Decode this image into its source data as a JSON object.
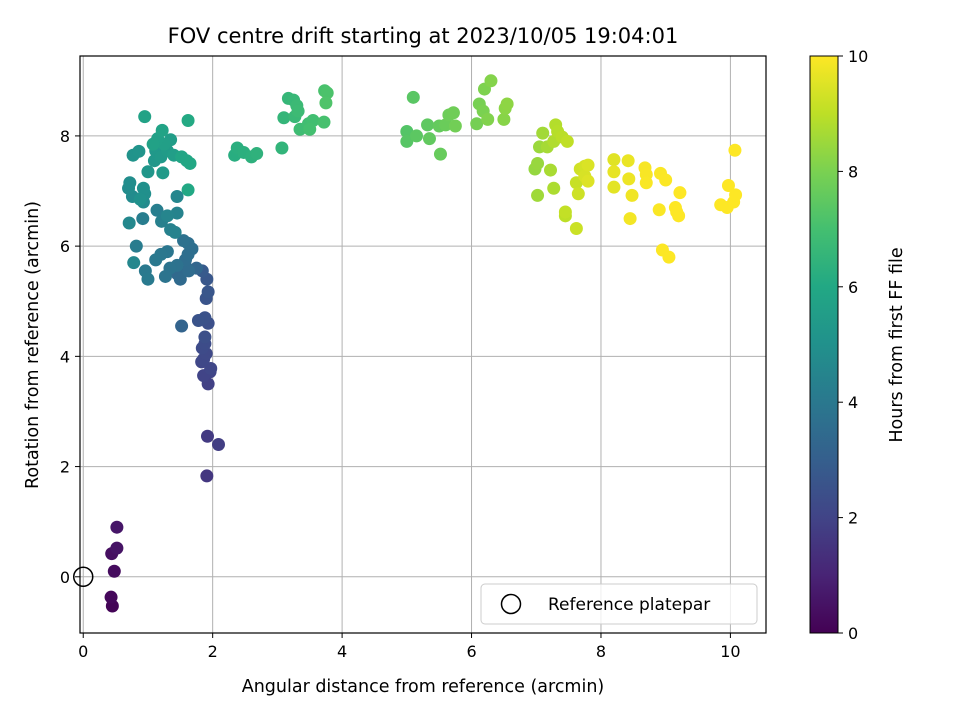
{
  "chart_data": {
    "type": "scatter",
    "title": "FOV centre drift starting at 2023/10/05 19:04:01",
    "xlabel": "Angular distance from reference (arcmin)",
    "ylabel": "Rotation from reference (arcmin)",
    "xlim": [
      -0.05,
      10.55
    ],
    "ylim": [
      -1.02,
      9.45
    ],
    "xticks": [
      "0",
      "2",
      "4",
      "6",
      "8",
      "10"
    ],
    "yticks": [
      "0",
      "2",
      "4",
      "6",
      "8"
    ],
    "grid": true,
    "legend_position": "lower-right",
    "legend": [
      "Reference platepar"
    ],
    "colorbar": {
      "label": "Hours from first FF file",
      "range": [
        0,
        10
      ],
      "ticks": [
        "0",
        "2",
        "4",
        "6",
        "8",
        "10"
      ],
      "colormap": "viridis"
    },
    "reference_point": {
      "x": 0,
      "y": 0
    },
    "points": [
      [
        0.45,
        -0.53,
        0.1
      ],
      [
        0.43,
        -0.37,
        0.2
      ],
      [
        0.48,
        0.1,
        0.3
      ],
      [
        0.44,
        0.42,
        0.4
      ],
      [
        0.52,
        0.52,
        0.5
      ],
      [
        0.52,
        0.9,
        0.6
      ],
      [
        1.91,
        1.83,
        1.6
      ],
      [
        1.92,
        2.55,
        1.7
      ],
      [
        2.09,
        2.4,
        1.8
      ],
      [
        1.93,
        3.5,
        1.9
      ],
      [
        1.96,
        3.72,
        2.0
      ],
      [
        1.86,
        3.65,
        2.0
      ],
      [
        1.97,
        3.78,
        2.1
      ],
      [
        1.83,
        3.9,
        2.1
      ],
      [
        1.86,
        3.95,
        2.15
      ],
      [
        1.9,
        4.05,
        2.2
      ],
      [
        1.84,
        4.15,
        2.25
      ],
      [
        1.88,
        4.23,
        2.3
      ],
      [
        1.88,
        4.35,
        2.4
      ],
      [
        1.93,
        4.6,
        2.45
      ],
      [
        1.88,
        4.7,
        2.5
      ],
      [
        1.78,
        4.65,
        2.55
      ],
      [
        1.9,
        5.05,
        2.6
      ],
      [
        1.93,
        5.17,
        2.65
      ],
      [
        1.91,
        5.4,
        2.7
      ],
      [
        1.84,
        5.55,
        2.8
      ],
      [
        1.52,
        4.55,
        3.2
      ],
      [
        1.75,
        5.6,
        3.3
      ],
      [
        1.58,
        5.63,
        3.35
      ],
      [
        1.45,
        5.5,
        3.4
      ],
      [
        1.5,
        5.4,
        3.45
      ],
      [
        1.63,
        5.55,
        3.5
      ],
      [
        1.58,
        5.75,
        3.55
      ],
      [
        1.62,
        5.85,
        3.6
      ],
      [
        1.68,
        5.95,
        3.6
      ],
      [
        1.62,
        6.05,
        3.65
      ],
      [
        1.55,
        6.1,
        3.7
      ],
      [
        1.45,
        5.65,
        3.75
      ],
      [
        1.34,
        5.6,
        3.8
      ],
      [
        1.27,
        5.45,
        3.85
      ],
      [
        1.3,
        5.9,
        3.9
      ],
      [
        1.2,
        5.85,
        3.95
      ],
      [
        1.12,
        5.75,
        4.0
      ],
      [
        0.96,
        5.55,
        4.05
      ],
      [
        1.0,
        5.4,
        4.1
      ],
      [
        0.82,
        6.0,
        4.15
      ],
      [
        0.92,
        6.5,
        4.2
      ],
      [
        1.14,
        6.65,
        4.25
      ],
      [
        1.21,
        6.45,
        4.3
      ],
      [
        1.35,
        6.3,
        4.35
      ],
      [
        1.42,
        6.25,
        4.4
      ],
      [
        1.45,
        6.6,
        4.45
      ],
      [
        1.3,
        6.55,
        4.5
      ],
      [
        1.45,
        6.9,
        4.55
      ],
      [
        0.78,
        5.7,
        4.6
      ],
      [
        0.71,
        6.42,
        4.65
      ],
      [
        0.93,
        6.8,
        4.7
      ],
      [
        0.76,
        6.9,
        4.75
      ],
      [
        0.7,
        7.05,
        4.8
      ],
      [
        0.72,
        7.15,
        4.85
      ],
      [
        0.95,
        6.95,
        4.9
      ],
      [
        0.93,
        7.05,
        4.95
      ],
      [
        0.88,
        6.85,
        5.0
      ],
      [
        0.77,
        7.65,
        5.1
      ],
      [
        0.86,
        7.72,
        5.15
      ],
      [
        1.0,
        7.35,
        5.2
      ],
      [
        1.1,
        7.55,
        5.25
      ],
      [
        1.12,
        7.73,
        5.3
      ],
      [
        1.2,
        7.62,
        5.35
      ],
      [
        1.23,
        7.33,
        5.4
      ],
      [
        1.3,
        7.73,
        5.45
      ],
      [
        1.35,
        7.93,
        5.5
      ],
      [
        1.4,
        7.65,
        5.55
      ],
      [
        1.25,
        7.85,
        5.6
      ],
      [
        1.15,
        7.95,
        5.65
      ],
      [
        1.08,
        7.85,
        5.7
      ],
      [
        0.95,
        8.35,
        5.75
      ],
      [
        1.22,
        8.1,
        5.8
      ],
      [
        1.52,
        7.62,
        5.85
      ],
      [
        1.6,
        7.55,
        5.9
      ],
      [
        1.65,
        7.5,
        5.95
      ],
      [
        1.62,
        7.02,
        6.0
      ],
      [
        1.62,
        8.28,
        6.05
      ],
      [
        2.34,
        7.65,
        6.2
      ],
      [
        2.38,
        7.78,
        6.25
      ],
      [
        2.48,
        7.7,
        6.3
      ],
      [
        2.6,
        7.62,
        6.35
      ],
      [
        2.68,
        7.68,
        6.4
      ],
      [
        3.07,
        7.78,
        6.5
      ],
      [
        3.1,
        8.33,
        6.55
      ],
      [
        3.17,
        8.68,
        6.6
      ],
      [
        3.25,
        8.65,
        6.65
      ],
      [
        3.27,
        8.35,
        6.7
      ],
      [
        3.3,
        8.55,
        6.75
      ],
      [
        3.32,
        8.45,
        6.8
      ],
      [
        3.35,
        8.12,
        6.85
      ],
      [
        3.48,
        8.22,
        6.9
      ],
      [
        3.55,
        8.28,
        6.95
      ],
      [
        3.5,
        8.12,
        7.0
      ],
      [
        3.72,
        8.25,
        7.05
      ],
      [
        3.73,
        8.82,
        7.1
      ],
      [
        3.77,
        8.78,
        7.15
      ],
      [
        3.75,
        8.6,
        7.2
      ],
      [
        5.0,
        8.08,
        7.3
      ],
      [
        5.0,
        7.9,
        7.35
      ],
      [
        5.1,
        8.7,
        7.4
      ],
      [
        5.15,
        8.0,
        7.45
      ],
      [
        5.32,
        8.2,
        7.5
      ],
      [
        5.35,
        7.95,
        7.55
      ],
      [
        5.5,
        8.18,
        7.6
      ],
      [
        5.52,
        7.67,
        7.65
      ],
      [
        5.6,
        8.2,
        7.7
      ],
      [
        5.65,
        8.38,
        7.75
      ],
      [
        5.72,
        8.42,
        7.8
      ],
      [
        5.75,
        8.18,
        7.85
      ],
      [
        6.08,
        8.22,
        7.9
      ],
      [
        6.12,
        8.58,
        7.95
      ],
      [
        6.18,
        8.45,
        8.0
      ],
      [
        6.2,
        8.85,
        8.05
      ],
      [
        6.25,
        8.3,
        8.1
      ],
      [
        6.3,
        9.0,
        8.15
      ],
      [
        6.5,
        8.3,
        8.2
      ],
      [
        6.52,
        8.5,
        8.25
      ],
      [
        6.55,
        8.58,
        8.3
      ],
      [
        6.98,
        7.4,
        8.4
      ],
      [
        7.02,
        7.5,
        8.45
      ],
      [
        7.05,
        7.8,
        8.5
      ],
      [
        7.02,
        6.92,
        8.55
      ],
      [
        7.1,
        8.05,
        8.6
      ],
      [
        7.17,
        7.8,
        8.65
      ],
      [
        7.22,
        7.38,
        8.7
      ],
      [
        7.27,
        7.05,
        8.75
      ],
      [
        7.27,
        7.9,
        8.8
      ],
      [
        7.3,
        8.2,
        8.85
      ],
      [
        7.33,
        8.08,
        8.9
      ],
      [
        7.4,
        7.98,
        8.95
      ],
      [
        7.45,
        6.55,
        9.0
      ],
      [
        7.48,
        7.9,
        9.05
      ],
      [
        7.45,
        6.62,
        9.1
      ],
      [
        7.62,
        7.15,
        9.15
      ],
      [
        7.62,
        6.32,
        9.2
      ],
      [
        7.65,
        6.95,
        9.25
      ],
      [
        7.68,
        7.4,
        9.3
      ],
      [
        7.75,
        7.45,
        9.35
      ],
      [
        7.75,
        7.27,
        9.4
      ],
      [
        7.8,
        7.47,
        9.45
      ],
      [
        7.8,
        7.18,
        9.5
      ],
      [
        8.2,
        7.57,
        9.55
      ],
      [
        8.2,
        7.07,
        9.6
      ],
      [
        8.2,
        7.35,
        9.65
      ],
      [
        8.42,
        7.55,
        9.7
      ],
      [
        8.43,
        7.22,
        9.75
      ],
      [
        8.48,
        6.92,
        9.8
      ],
      [
        8.45,
        6.5,
        9.85
      ],
      [
        8.68,
        7.42,
        9.9
      ],
      [
        8.7,
        7.3,
        9.92
      ],
      [
        8.7,
        7.15,
        9.94
      ],
      [
        8.9,
        6.66,
        9.95
      ],
      [
        8.92,
        7.32,
        9.96
      ],
      [
        9.0,
        7.2,
        9.97
      ],
      [
        8.95,
        5.93,
        9.98
      ],
      [
        9.05,
        5.8,
        9.99
      ],
      [
        9.15,
        6.7,
        10.0
      ],
      [
        9.2,
        6.55,
        10.0
      ],
      [
        9.22,
        6.97,
        10.0
      ],
      [
        9.17,
        6.62,
        10.0
      ],
      [
        9.85,
        6.75,
        10.0
      ],
      [
        9.95,
        6.7,
        10.0
      ],
      [
        9.97,
        7.1,
        10.0
      ],
      [
        10.05,
        6.8,
        10.0
      ],
      [
        10.08,
        6.93,
        10.0
      ],
      [
        10.07,
        7.74,
        10.0
      ]
    ]
  }
}
